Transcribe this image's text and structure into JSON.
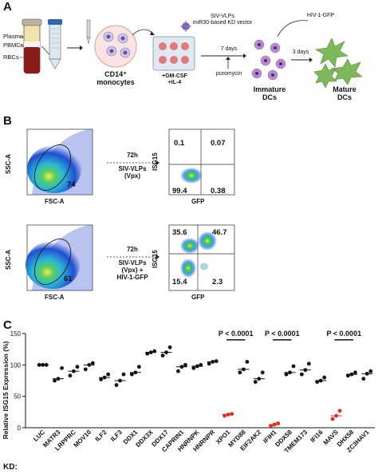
{
  "panel_a": {
    "letter": "A",
    "tube_labels": [
      "Plasma",
      "PBMCs",
      "RBCs"
    ],
    "monocytes_label": "CD14⁺\nmonocytes",
    "vector_text": [
      "SIV-VLPs",
      "miR30-based KD vector"
    ],
    "cytokines": [
      "+GM-CSF",
      "+IL-4"
    ],
    "days_1": "7 days",
    "puromycin": "puromycin",
    "hiv_label": "HIV-1-GFP",
    "days_2": "3 days",
    "immature": [
      "Immature",
      "DCs"
    ],
    "mature": [
      "Mature",
      "DCs"
    ]
  },
  "panel_b": {
    "letter": "B",
    "rows": [
      {
        "ssc_label": "SSC-A",
        "fsc_label": "FSC-A",
        "gate_value": "74",
        "arrow_top": "72h",
        "arrow_bottom": [
          "SIV-VLPs",
          "(Vpx)"
        ],
        "isg_label": "ISG15",
        "gfp_label": "GFP",
        "quadrants": {
          "ul": "0.1",
          "ur": "0.07",
          "ll": "99.4",
          "lr": "0.38"
        }
      },
      {
        "ssc_label": "SSC-A",
        "fsc_label": "FSC-A",
        "gate_value": "61",
        "arrow_top": "72h",
        "arrow_bottom": [
          "SIV-VLPs",
          "(Vpx) +",
          "HIV-1-GFP"
        ],
        "isg_label": "ISG15",
        "gfp_label": "GFP",
        "quadrants": {
          "ul": "35.6",
          "ur": "46.7",
          "ll": "15.4",
          "lr": "2.3"
        }
      }
    ]
  },
  "panel_c": {
    "letter": "C",
    "kd_label": "KD:",
    "significance": "P < 0.0001",
    "colors": {
      "normal": "#111111",
      "significant": "#e8291c"
    }
  },
  "chart_data": {
    "type": "scatter",
    "ylabel": "Relative ISG15 Expression (%)",
    "xlabel": "KD:",
    "ylim": [
      0,
      150
    ],
    "yticks": [
      0,
      50,
      100,
      150
    ],
    "categories": [
      "LUC",
      "MATR3",
      "LRPPRC",
      "MOV10",
      "ILF2",
      "ILF3",
      "DDX1",
      "DDX3X",
      "DDX17",
      "CAPRIN1",
      "HNRNPK",
      "HNRNPR",
      "XPO1",
      "MYD88",
      "EIF2AK2",
      "IFIH1",
      "DDX58",
      "TMEM173",
      "IFI16",
      "MAVS",
      "DHX58",
      "ZC3HAV1"
    ],
    "series": [
      {
        "values": [
          [
            100,
            100,
            100
          ],
          [
            75,
            78,
            95
          ],
          [
            83,
            90,
            97
          ],
          [
            93,
            100,
            103
          ],
          [
            77,
            80,
            85
          ],
          [
            68,
            75,
            85
          ],
          [
            85,
            88,
            97
          ],
          [
            118,
            120,
            122
          ],
          [
            115,
            120,
            128
          ],
          [
            90,
            97,
            100
          ],
          [
            95,
            98,
            100
          ],
          [
            102,
            105,
            106
          ],
          [
            19,
            21,
            22
          ],
          [
            88,
            93,
            105
          ],
          [
            73,
            78,
            88
          ],
          [
            3,
            5,
            7
          ],
          [
            85,
            88,
            98
          ],
          [
            85,
            92,
            102
          ],
          [
            73,
            75,
            80
          ],
          [
            14,
            19,
            27
          ],
          [
            83,
            85,
            88
          ],
          [
            78,
            86,
            90
          ]
        ],
        "highlighted": [
          "XPO1",
          "IFIH1",
          "MAVS"
        ]
      }
    ],
    "significance_brackets": [
      {
        "from": "XPO1",
        "to": "MYD88",
        "label": "P < 0.0001"
      },
      {
        "from": "IFIH1",
        "to": "DDX58",
        "label": "P < 0.0001"
      },
      {
        "from": "MAVS",
        "to": "DHX58",
        "label": "P < 0.0001"
      }
    ]
  }
}
